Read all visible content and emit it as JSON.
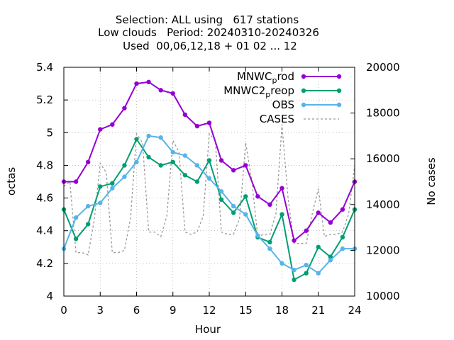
{
  "chart_data": {
    "type": "line",
    "title_lines": [
      "Selection: ALL using   617 stations",
      "Low clouds   Period: 20240310-20240326",
      "Used  00,06,12,18 + 01 02 ... 12"
    ],
    "xlabel": "Hour",
    "ylabel": "octas",
    "y2label": "No cases",
    "xlim": [
      0,
      24
    ],
    "ylim": [
      4.0,
      5.4
    ],
    "y2lim": [
      10000,
      20000
    ],
    "xticks": [
      "0",
      "3",
      "6",
      "9",
      "12",
      "15",
      "18",
      "21",
      "24"
    ],
    "yticks": [
      "4",
      "4.2",
      "4.4",
      "4.6",
      "4.8",
      "5",
      "5.2",
      "5.4"
    ],
    "y2ticks": [
      "10000",
      "12000",
      "14000",
      "16000",
      "18000",
      "20000"
    ],
    "grid": true,
    "legend_position": "top-right",
    "x": [
      0,
      1,
      2,
      3,
      4,
      5,
      6,
      7,
      8,
      9,
      10,
      11,
      12,
      13,
      14,
      15,
      16,
      17,
      18,
      19,
      20,
      21,
      22,
      23,
      24
    ],
    "series": [
      {
        "name": "MNWC_prod",
        "legend_main": "MNWC",
        "legend_sub": "p",
        "legend_tail": "rod",
        "color": "#9400d3",
        "axis": "y1",
        "values": [
          4.7,
          4.7,
          4.82,
          5.02,
          5.05,
          5.15,
          5.3,
          5.31,
          5.26,
          5.24,
          5.11,
          5.04,
          5.06,
          4.83,
          4.77,
          4.8,
          4.61,
          4.56,
          4.66,
          4.34,
          4.4,
          4.51,
          4.45,
          4.53,
          4.7
        ]
      },
      {
        "name": "MNWC2_preop",
        "legend_main": "MNWC2",
        "legend_sub": "p",
        "legend_tail": "reop",
        "color": "#009e73",
        "axis": "y1",
        "values": [
          4.53,
          4.35,
          4.44,
          4.67,
          4.69,
          4.8,
          4.96,
          4.85,
          4.8,
          4.82,
          4.74,
          4.7,
          4.83,
          4.59,
          4.51,
          4.61,
          4.36,
          4.33,
          4.5,
          4.1,
          4.14,
          4.3,
          4.24,
          4.36,
          4.53
        ]
      },
      {
        "name": "OBS",
        "legend_main": "OBS",
        "legend_sub": "",
        "legend_tail": "",
        "color": "#56b4e9",
        "axis": "y1",
        "values": [
          4.29,
          4.48,
          4.55,
          4.57,
          4.66,
          4.73,
          4.82,
          4.98,
          4.97,
          4.88,
          4.86,
          4.8,
          4.72,
          4.64,
          4.55,
          4.5,
          4.37,
          4.29,
          4.2,
          4.16,
          4.19,
          4.14,
          4.22,
          4.29,
          4.29
        ]
      },
      {
        "name": "CASES",
        "legend_main": "CASES",
        "legend_sub": "",
        "legend_tail": "",
        "color": "#999999",
        "axis": "y2",
        "dashed": true,
        "x": [
          0,
          0.5,
          1,
          1.5,
          2,
          2.5,
          3,
          3.5,
          4,
          4.5,
          5,
          5.5,
          6,
          6.5,
          7,
          7.5,
          8,
          8.5,
          9,
          9.5,
          10,
          10.5,
          11,
          11.5,
          12,
          12.5,
          13,
          13.5,
          14,
          14.5,
          15,
          15.5,
          16,
          16.5,
          17,
          17.5,
          18,
          18.5,
          19,
          19.5,
          20,
          20.5,
          21,
          21.5,
          22,
          22.5,
          23,
          23.5,
          24
        ],
        "values": [
          14800,
          15000,
          11900,
          11900,
          11800,
          13300,
          15800,
          15400,
          11900,
          11900,
          12000,
          13400,
          17100,
          16700,
          12800,
          12800,
          12600,
          13500,
          16800,
          16300,
          12800,
          12700,
          12800,
          13500,
          17100,
          16800,
          12800,
          12700,
          12700,
          13400,
          16700,
          15100,
          12600,
          12700,
          12700,
          13600,
          17500,
          14300,
          12300,
          12300,
          12300,
          13600,
          14700,
          12600,
          12700,
          12700,
          12800,
          13600,
          15700
        ]
      }
    ]
  }
}
